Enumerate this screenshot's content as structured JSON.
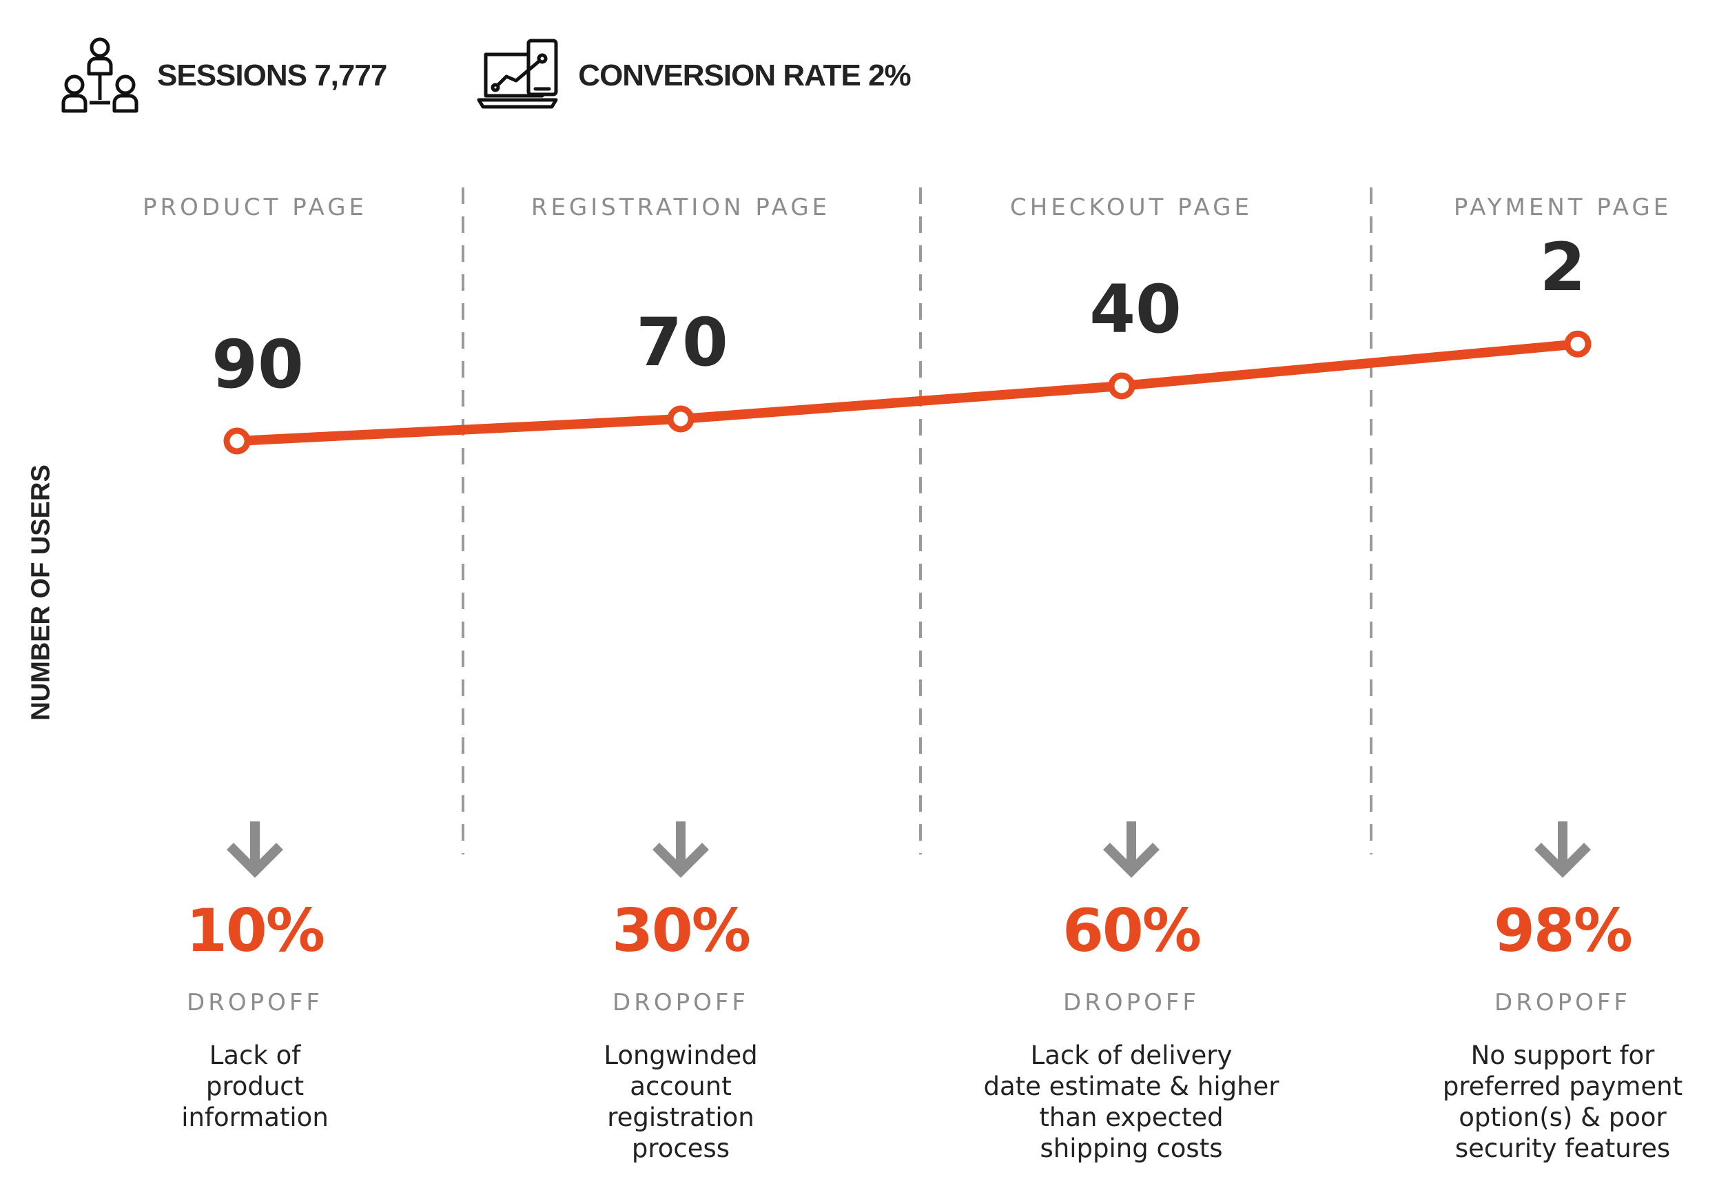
{
  "header": {
    "sessions_label": "SESSIONS 7,777",
    "conversion_label": "CONVERSION RATE 2%",
    "sessions_icon": "users-network-icon",
    "conversion_icon": "laptop-phone-growth-icon"
  },
  "colors": {
    "accent": "#e84a1f",
    "text": "#2b2b2b",
    "muted": "#8c8c8c",
    "divider": "#9a9a9a"
  },
  "chart_data": {
    "type": "line",
    "title": "",
    "xlabel": "",
    "ylabel": "NUMBER OF USERS",
    "categories": [
      "PRODUCT PAGE",
      "REGISTRATION PAGE",
      "CHECKOUT PAGE",
      "PAYMENT PAGE"
    ],
    "series": [
      {
        "values": [
          90,
          70,
          40,
          2
        ]
      }
    ],
    "value_labels": [
      "90",
      "70",
      "40",
      "2"
    ],
    "dropoff": {
      "label": "DROPOFF",
      "values": [
        "10%",
        "30%",
        "60%",
        "98%"
      ],
      "arrow_icon": "arrow-down-icon"
    },
    "reasons": [
      [
        "Lack of",
        "product",
        "information"
      ],
      [
        "Longwinded",
        "account",
        "registration",
        "process"
      ],
      [
        "Lack of delivery",
        "date estimate & higher",
        "than expected",
        "shipping costs"
      ],
      [
        "No support for",
        "preferred payment",
        "option(s) & poor",
        "security features"
      ]
    ],
    "grid": false,
    "legend": "none"
  }
}
